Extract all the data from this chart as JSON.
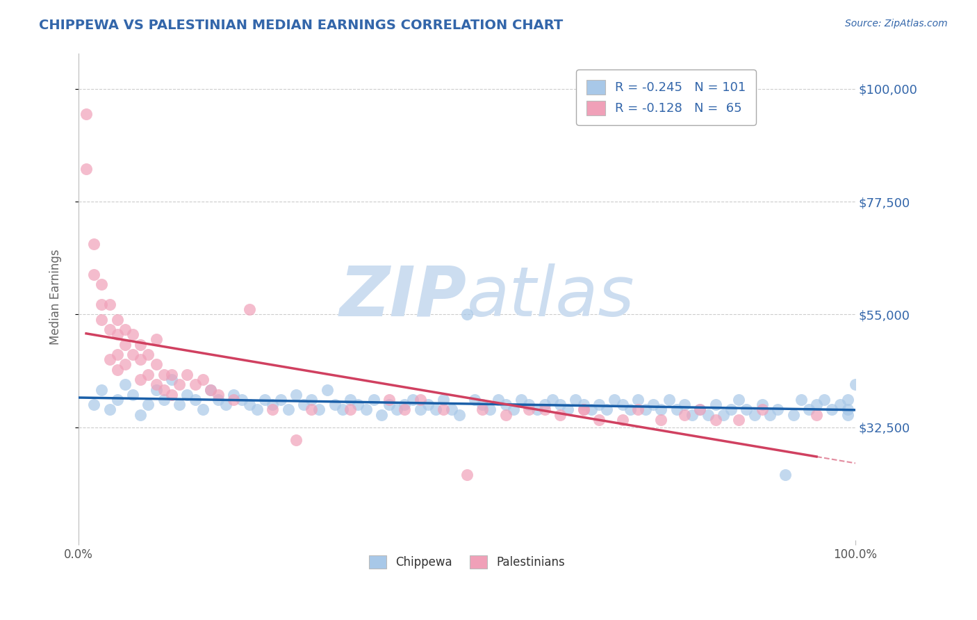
{
  "title": "CHIPPEWA VS PALESTINIAN MEDIAN EARNINGS CORRELATION CHART",
  "source": "Source: ZipAtlas.com",
  "ylabel": "Median Earnings",
  "xlim": [
    0,
    100
  ],
  "ylim": [
    10000,
    107000
  ],
  "yticks": [
    32500,
    55000,
    77500,
    100000
  ],
  "ytick_labels": [
    "$32,500",
    "$55,000",
    "$77,500",
    "$100,000"
  ],
  "xtick_labels": [
    "0.0%",
    "100.0%"
  ],
  "legend_r1": "R = -0.245",
  "legend_n1": "N = 101",
  "legend_r2": "R = -0.128",
  "legend_n2": "N =  65",
  "blue_color": "#a8c8e8",
  "pink_color": "#f0a0b8",
  "trend_blue": "#1a5fa8",
  "trend_pink": "#d04060",
  "watermark_zip": "ZIP",
  "watermark_atlas": "atlas",
  "watermark_color": "#ccddf0",
  "title_color": "#3366aa",
  "axis_label_color": "#666666",
  "ytick_color": "#3366aa",
  "xtick_color": "#555555",
  "grid_color": "#cccccc",
  "chippewa_x": [
    2,
    3,
    4,
    5,
    6,
    7,
    8,
    9,
    10,
    11,
    12,
    13,
    14,
    15,
    16,
    17,
    18,
    19,
    20,
    21,
    22,
    23,
    24,
    25,
    26,
    27,
    28,
    29,
    30,
    31,
    32,
    33,
    34,
    35,
    36,
    37,
    38,
    39,
    40,
    41,
    42,
    43,
    44,
    45,
    46,
    47,
    48,
    49,
    50,
    51,
    52,
    53,
    54,
    55,
    56,
    57,
    58,
    59,
    60,
    61,
    62,
    63,
    64,
    65,
    66,
    67,
    68,
    69,
    70,
    71,
    72,
    73,
    74,
    75,
    76,
    77,
    78,
    79,
    80,
    81,
    82,
    83,
    84,
    85,
    86,
    87,
    88,
    89,
    90,
    91,
    92,
    93,
    94,
    95,
    96,
    97,
    98,
    99,
    99,
    99,
    100
  ],
  "chippewa_y": [
    37000,
    40000,
    36000,
    38000,
    41000,
    39000,
    35000,
    37000,
    40000,
    38000,
    42000,
    37000,
    39000,
    38000,
    36000,
    40000,
    38000,
    37000,
    39000,
    38000,
    37000,
    36000,
    38000,
    37000,
    38000,
    36000,
    39000,
    37000,
    38000,
    36000,
    40000,
    37000,
    36000,
    38000,
    37000,
    36000,
    38000,
    35000,
    37000,
    36000,
    37000,
    38000,
    36000,
    37000,
    36000,
    38000,
    36000,
    35000,
    55000,
    38000,
    37000,
    36000,
    38000,
    37000,
    36000,
    38000,
    37000,
    36000,
    37000,
    38000,
    37000,
    36000,
    38000,
    37000,
    36000,
    37000,
    36000,
    38000,
    37000,
    36000,
    38000,
    36000,
    37000,
    36000,
    38000,
    36000,
    37000,
    35000,
    36000,
    35000,
    37000,
    35000,
    36000,
    38000,
    36000,
    35000,
    37000,
    35000,
    36000,
    23000,
    35000,
    38000,
    36000,
    37000,
    38000,
    36000,
    37000,
    38000,
    36000,
    35000,
    41000
  ],
  "palestinian_x": [
    1,
    1,
    2,
    2,
    3,
    3,
    3,
    4,
    4,
    4,
    5,
    5,
    5,
    5,
    6,
    6,
    6,
    7,
    7,
    8,
    8,
    8,
    9,
    9,
    10,
    10,
    10,
    11,
    11,
    12,
    12,
    13,
    14,
    15,
    16,
    17,
    18,
    20,
    22,
    25,
    28,
    30,
    35,
    40,
    42,
    44,
    47,
    50,
    52,
    55,
    58,
    60,
    62,
    65,
    65,
    67,
    70,
    72,
    75,
    78,
    80,
    82,
    85,
    88,
    95
  ],
  "palestinian_y": [
    95000,
    84000,
    69000,
    63000,
    61000,
    57000,
    54000,
    57000,
    52000,
    46000,
    54000,
    51000,
    47000,
    44000,
    52000,
    49000,
    45000,
    51000,
    47000,
    49000,
    46000,
    42000,
    47000,
    43000,
    45000,
    50000,
    41000,
    43000,
    40000,
    43000,
    39000,
    41000,
    43000,
    41000,
    42000,
    40000,
    39000,
    38000,
    56000,
    36000,
    30000,
    36000,
    36000,
    38000,
    36000,
    38000,
    36000,
    23000,
    36000,
    35000,
    36000,
    36000,
    35000,
    36000,
    36000,
    34000,
    34000,
    36000,
    34000,
    35000,
    36000,
    34000,
    34000,
    36000,
    35000
  ]
}
